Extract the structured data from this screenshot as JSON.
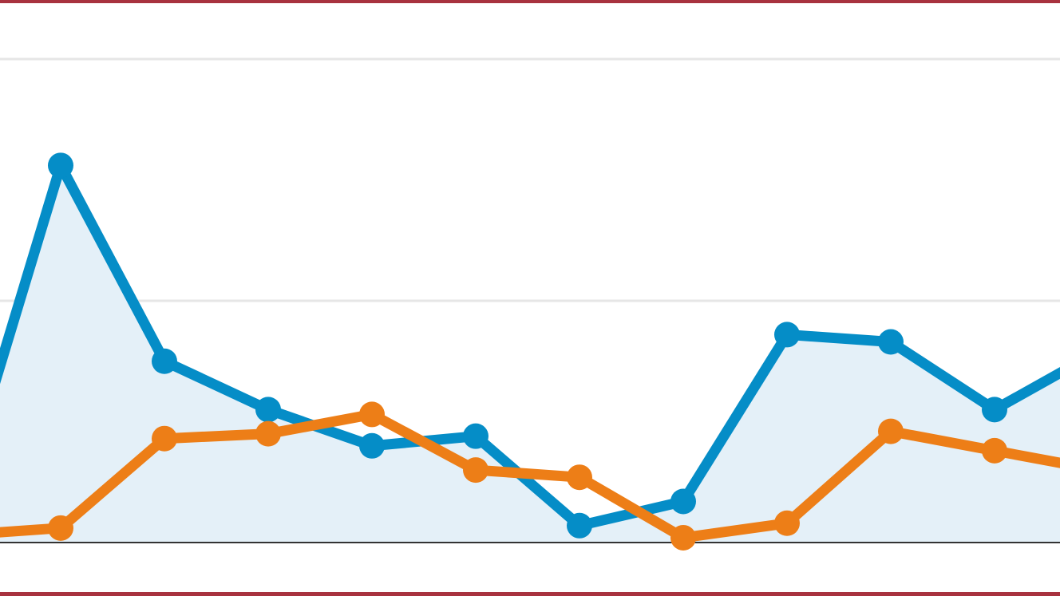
{
  "chart_data": {
    "type": "line",
    "title": "",
    "xlabel": "",
    "ylabel": "",
    "ylim": [
      0,
      200
    ],
    "grid": true,
    "gridlines": [
      0,
      100,
      200
    ],
    "x": [
      0,
      1,
      2,
      3,
      4,
      5,
      6,
      7,
      8,
      9,
      10,
      11
    ],
    "series": [
      {
        "color": "#058dc7",
        "area_fill": "#e4f0f8",
        "values": [
          14,
          156,
          75,
          55,
          40,
          44,
          7,
          17,
          86,
          83,
          55,
          79
        ]
      },
      {
        "color": "#ed7e17",
        "values": [
          3,
          6,
          43,
          45,
          53,
          30,
          27,
          2,
          8,
          46,
          38,
          30
        ]
      }
    ]
  },
  "colors": {
    "frame": "#a8323f",
    "grid": "#e6e6e6",
    "baseline": "#333333"
  }
}
